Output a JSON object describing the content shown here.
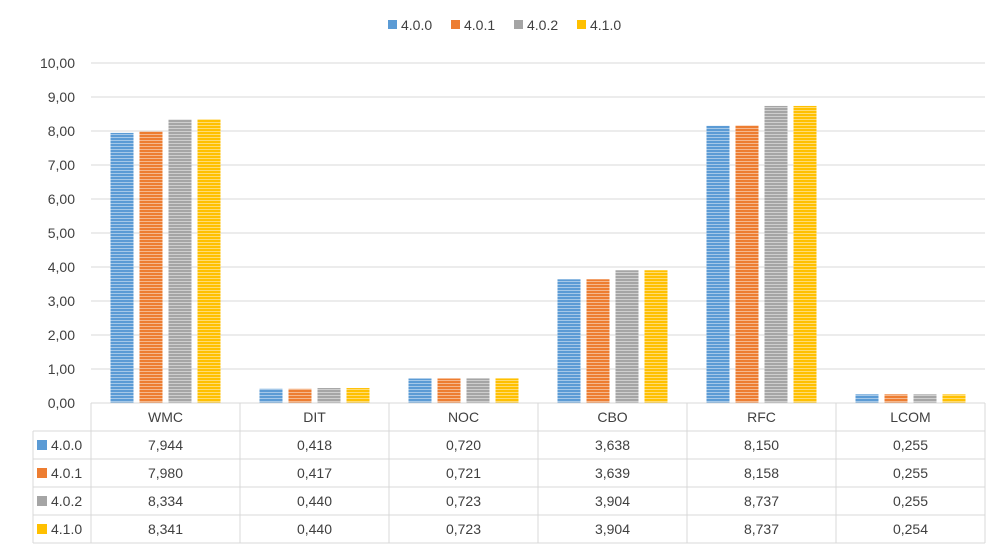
{
  "chart_data": {
    "type": "bar",
    "title": "",
    "xlabel": "",
    "ylabel": "",
    "ylim": [
      0,
      10
    ],
    "ytick_step": 1,
    "grid": true,
    "legend_position": "top",
    "categories": [
      "WMC",
      "DIT",
      "NOC",
      "CBO",
      "RFC",
      "LCOM"
    ],
    "yticks": [
      "0,00",
      "1,00",
      "2,00",
      "3,00",
      "4,00",
      "5,00",
      "6,00",
      "7,00",
      "8,00",
      "9,00",
      "10,00"
    ],
    "series": [
      {
        "name": "4.0.0",
        "color": "#5B9BD5",
        "values": [
          7.944,
          0.418,
          0.72,
          3.638,
          8.15,
          0.255
        ],
        "labels": [
          "7,944",
          "0,418",
          "0,720",
          "3,638",
          "8,150",
          "0,255"
        ]
      },
      {
        "name": "4.0.1",
        "color": "#ED7D31",
        "values": [
          7.98,
          0.417,
          0.721,
          3.639,
          8.158,
          0.255
        ],
        "labels": [
          "7,980",
          "0,417",
          "0,721",
          "3,639",
          "8,158",
          "0,255"
        ]
      },
      {
        "name": "4.0.2",
        "color": "#A5A5A5",
        "values": [
          8.334,
          0.44,
          0.723,
          3.904,
          8.737,
          0.255
        ],
        "labels": [
          "8,334",
          "0,440",
          "0,723",
          "3,904",
          "8,737",
          "0,255"
        ]
      },
      {
        "name": "4.1.0",
        "color": "#FFC000",
        "values": [
          8.341,
          0.44,
          0.723,
          3.904,
          8.737,
          0.254
        ],
        "labels": [
          "8,341",
          "0,440",
          "0,723",
          "3,904",
          "8,737",
          "0,254"
        ]
      }
    ]
  }
}
